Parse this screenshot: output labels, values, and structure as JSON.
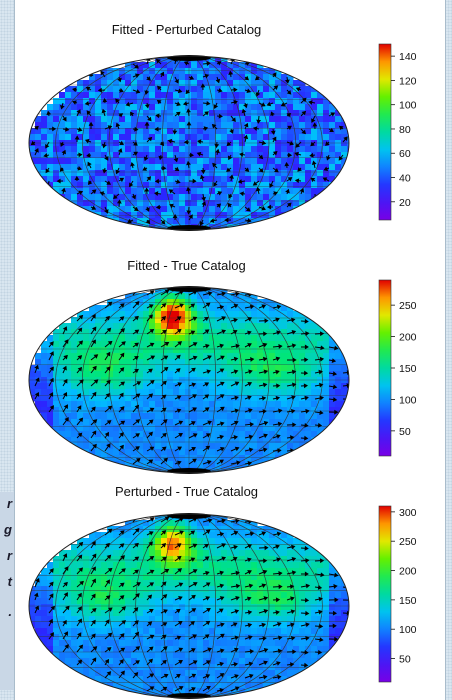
{
  "caption_fragments": [
    "r",
    "g",
    "r",
    "t",
    "."
  ],
  "chart_data": [
    {
      "type": "heatmap",
      "title": "Fitted - Perturbed Catalog",
      "projection": "aitoff-hammer all-sky map with vector field arrows",
      "colormap": "rainbow (purple to red)",
      "colorbar_range": [
        5,
        150
      ],
      "colorbar_ticks": [
        20,
        40,
        60,
        80,
        100,
        120,
        140
      ],
      "pattern": "uniform low values (mostly blue) with scattered noise"
    },
    {
      "type": "heatmap",
      "title": "Fitted - True Catalog",
      "projection": "aitoff-hammer all-sky map with vector field arrows",
      "colormap": "rainbow (purple to red)",
      "colorbar_range": [
        10,
        290
      ],
      "colorbar_ticks": [
        50,
        100,
        150,
        200,
        250
      ],
      "pattern": "high values near top center (red/orange), green bands upper hemisphere, blue elsewhere"
    },
    {
      "type": "heatmap",
      "title": "Perturbed - True Catalog",
      "projection": "aitoff-hammer all-sky map with vector field arrows",
      "colormap": "rainbow (purple to red)",
      "colorbar_range": [
        10,
        310
      ],
      "colorbar_ticks": [
        50,
        100,
        150,
        200,
        250,
        300
      ],
      "pattern": "high values near top center (orange), green bands upper hemisphere, blue elsewhere"
    }
  ]
}
